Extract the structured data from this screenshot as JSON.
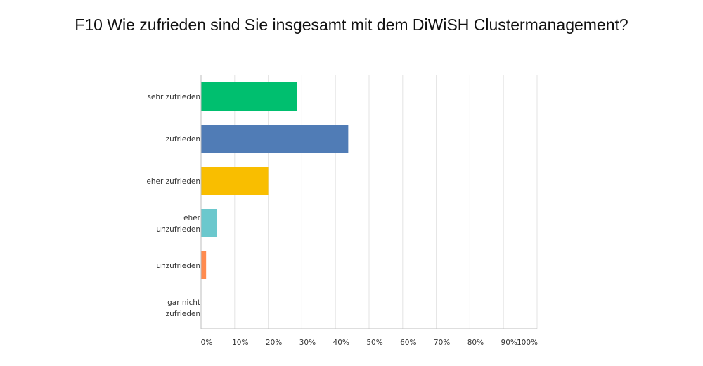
{
  "chart_data": {
    "type": "bar",
    "orientation": "horizontal",
    "title": "F10 Wie zufrieden sind Sie insgesamt mit dem DiWiSH Clustermanagement?",
    "categories": [
      [
        "sehr zufrieden"
      ],
      [
        "zufrieden"
      ],
      [
        "eher zufrieden"
      ],
      [
        "eher",
        "unzufrieden"
      ],
      [
        "unzufrieden"
      ],
      [
        "gar nicht",
        "zufrieden"
      ]
    ],
    "values": [
      28.6,
      43.8,
      20.0,
      4.8,
      1.5,
      0
    ],
    "colors": [
      "#00bf6f",
      "#507cb6",
      "#f9be00",
      "#6bc8cd",
      "#ff8b4f",
      "#7d5ba6"
    ],
    "xlim": [
      0,
      100
    ],
    "x_ticks": [
      "0%",
      "10%",
      "20%",
      "30%",
      "40%",
      "50%",
      "60%",
      "70%",
      "80%",
      "90%",
      "100%"
    ],
    "grid": true,
    "xlabel": "",
    "ylabel": ""
  }
}
